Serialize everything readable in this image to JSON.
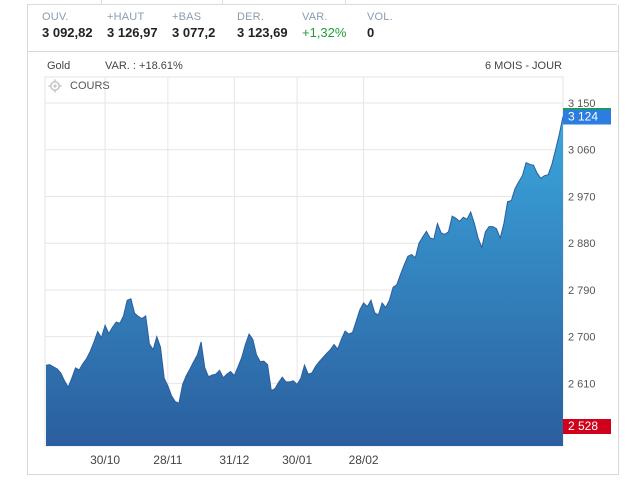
{
  "quote": {
    "open_label": "OUV.",
    "open": "3 092,82",
    "high_label": "+HAUT",
    "high": "3 126,97",
    "low_label": "+BAS",
    "low": "3 077,2",
    "last_label": "DER.",
    "last": "3 123,69",
    "change_label": "VAR.",
    "change": "+1,32%",
    "volume_label": "VOL.",
    "volume": "0"
  },
  "header": {
    "instrument": "Gold",
    "variation": "VAR. : +18.61%",
    "period": "6 MOIS - JOUR",
    "series_label": "COURS"
  },
  "colors": {
    "area_top": "#3ba6dc",
    "area_bottom": "#2b5e9e",
    "up": "#1e9e3a",
    "current_tag": "#2b7de0",
    "min_tag": "#d0021b",
    "max_line": "#1e9e3a"
  },
  "chart_data": {
    "type": "area",
    "title": "",
    "xlabel": "",
    "ylabel": "",
    "ylim": [
      2528,
      3150
    ],
    "yticks": [
      3150,
      3060,
      2970,
      2880,
      2790,
      2700,
      2610
    ],
    "ytick_labels": [
      "3 150",
      "3 060",
      "2 970",
      "2 880",
      "2 790",
      "2 700",
      "2 610"
    ],
    "xtick_labels": [
      "30/10",
      "28/11",
      "31/12",
      "30/01",
      "28/02"
    ],
    "xtick_index": [
      16,
      33,
      51,
      68,
      86
    ],
    "current_value": 3124,
    "current_label": "3 124",
    "min_value": 2528,
    "min_label": "2 528",
    "values": [
      2645,
      2646,
      2642,
      2638,
      2630,
      2615,
      2603,
      2620,
      2640,
      2636,
      2648,
      2658,
      2672,
      2690,
      2710,
      2698,
      2722,
      2706,
      2718,
      2728,
      2726,
      2740,
      2770,
      2773,
      2745,
      2739,
      2735,
      2740,
      2686,
      2675,
      2700,
      2680,
      2620,
      2605,
      2586,
      2575,
      2572,
      2608,
      2625,
      2638,
      2652,
      2665,
      2690,
      2640,
      2623,
      2626,
      2628,
      2635,
      2621,
      2628,
      2633,
      2625,
      2642,
      2660,
      2685,
      2705,
      2695,
      2665,
      2652,
      2653,
      2646,
      2596,
      2600,
      2612,
      2622,
      2613,
      2613,
      2615,
      2608,
      2620,
      2645,
      2628,
      2630,
      2643,
      2652,
      2660,
      2668,
      2675,
      2685,
      2676,
      2695,
      2711,
      2705,
      2708,
      2730,
      2752,
      2765,
      2758,
      2770,
      2746,
      2742,
      2765,
      2756,
      2770,
      2795,
      2800,
      2820,
      2838,
      2855,
      2858,
      2852,
      2880,
      2892,
      2903,
      2890,
      2888,
      2918,
      2900,
      2897,
      2902,
      2932,
      2928,
      2922,
      2930,
      2926,
      2940,
      2918,
      2890,
      2872,
      2902,
      2912,
      2912,
      2908,
      2890,
      2918,
      2960,
      2962,
      2985,
      2998,
      3010,
      3035,
      3032,
      3030,
      3015,
      3005,
      3010,
      3012,
      3032,
      3060,
      3090,
      3124
    ]
  }
}
